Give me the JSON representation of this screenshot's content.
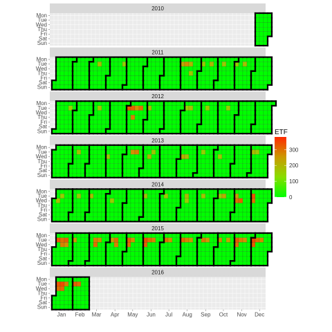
{
  "chart_data": {
    "type": "heatmap",
    "title": "",
    "xlabel": "",
    "ylabel": "",
    "x_tick_labels": [
      "Jan",
      "Feb",
      "Mar",
      "Apr",
      "May",
      "Jun",
      "Jul",
      "Aug",
      "Sep",
      "Oct",
      "Nov",
      "Dec"
    ],
    "y_tick_labels": [
      "Mon",
      "Tue",
      "Wed",
      "Thu",
      "Fri",
      "Sat",
      "Sun"
    ],
    "facets": [
      "2010",
      "2011",
      "2012",
      "2013",
      "2014",
      "2015",
      "2016"
    ],
    "legend": {
      "title": "ETF",
      "ticks": [
        0,
        100,
        200,
        300
      ],
      "range": [
        0,
        380
      ],
      "position": "right",
      "colors": [
        "#00ff00",
        "#88dd00",
        "#cc9900",
        "#ff2a00"
      ]
    },
    "grid": true,
    "data_start": "2010-12-06",
    "data_end": "2016-02-28",
    "elevated_cells": [
      [
        "2011-03-15",
        180
      ],
      [
        "2011-04-26",
        150
      ],
      [
        "2011-08-02",
        220
      ],
      [
        "2011-08-09",
        260
      ],
      [
        "2011-08-16",
        200
      ],
      [
        "2011-08-18",
        170
      ],
      [
        "2011-09-06",
        150
      ],
      [
        "2011-09-20",
        190
      ],
      [
        "2011-10-11",
        160
      ],
      [
        "2011-11-01",
        150
      ],
      [
        "2011-11-15",
        180
      ],
      [
        "2012-01-24",
        150
      ],
      [
        "2012-03-13",
        170
      ],
      [
        "2012-05-01",
        330
      ],
      [
        "2012-05-08",
        320
      ],
      [
        "2012-05-10",
        280
      ],
      [
        "2012-05-15",
        260
      ],
      [
        "2012-05-22",
        300
      ],
      [
        "2012-06-05",
        190
      ],
      [
        "2012-08-07",
        150
      ],
      [
        "2012-08-14",
        180
      ],
      [
        "2012-09-11",
        160
      ],
      [
        "2012-10-16",
        150
      ],
      [
        "2013-02-12",
        180
      ],
      [
        "2013-04-03",
        150
      ],
      [
        "2013-05-14",
        260
      ],
      [
        "2013-05-21",
        280
      ],
      [
        "2013-06-12",
        200
      ],
      [
        "2013-06-18",
        170
      ],
      [
        "2013-08-07",
        220
      ],
      [
        "2013-08-14",
        180
      ],
      [
        "2013-09-10",
        150
      ],
      [
        "2013-10-09",
        160
      ],
      [
        "2013-12-03",
        190
      ],
      [
        "2013-12-10",
        160
      ],
      [
        "2014-01-08",
        170
      ],
      [
        "2014-01-14",
        150
      ],
      [
        "2014-02-11",
        160
      ],
      [
        "2014-03-04",
        180
      ],
      [
        "2014-04-09",
        150
      ],
      [
        "2014-06-03",
        170
      ],
      [
        "2014-07-08",
        160
      ],
      [
        "2014-08-12",
        190
      ],
      [
        "2014-08-13",
        150
      ],
      [
        "2014-09-09",
        170
      ],
      [
        "2014-10-07",
        150
      ],
      [
        "2014-10-14",
        210
      ],
      [
        "2014-11-04",
        240
      ],
      [
        "2014-11-05",
        300
      ],
      [
        "2014-11-12",
        320
      ],
      [
        "2014-12-02",
        330
      ],
      [
        "2014-12-03",
        300
      ],
      [
        "2015-01-06",
        330
      ],
      [
        "2015-01-13",
        300
      ],
      [
        "2015-01-14",
        280
      ],
      [
        "2015-01-20",
        320
      ],
      [
        "2015-01-21",
        260
      ],
      [
        "2015-02-03",
        250
      ],
      [
        "2015-03-10",
        280
      ],
      [
        "2015-03-11",
        300
      ],
      [
        "2015-03-17",
        260
      ],
      [
        "2015-04-07",
        230
      ],
      [
        "2015-04-14",
        300
      ],
      [
        "2015-04-15",
        280
      ],
      [
        "2015-05-05",
        320
      ],
      [
        "2015-05-06",
        300
      ],
      [
        "2015-05-12",
        260
      ],
      [
        "2015-06-02",
        340
      ],
      [
        "2015-06-03",
        310
      ],
      [
        "2015-06-09",
        300
      ],
      [
        "2015-06-16",
        280
      ],
      [
        "2015-07-07",
        300
      ],
      [
        "2015-07-14",
        260
      ],
      [
        "2015-08-04",
        310
      ],
      [
        "2015-08-11",
        280
      ],
      [
        "2015-08-18",
        250
      ],
      [
        "2015-09-08",
        290
      ],
      [
        "2015-09-15",
        250
      ],
      [
        "2015-10-06",
        260
      ],
      [
        "2015-10-20",
        230
      ],
      [
        "2015-11-03",
        330
      ],
      [
        "2015-11-04",
        300
      ],
      [
        "2015-11-10",
        280
      ],
      [
        "2015-11-17",
        260
      ],
      [
        "2015-12-01",
        350
      ],
      [
        "2015-12-02",
        320
      ],
      [
        "2015-12-08",
        300
      ],
      [
        "2015-12-15",
        270
      ],
      [
        "2016-01-05",
        330
      ],
      [
        "2016-01-06",
        300
      ],
      [
        "2016-01-12",
        340
      ],
      [
        "2016-01-13",
        310
      ],
      [
        "2016-01-19",
        280
      ],
      [
        "2016-02-02",
        320
      ],
      [
        "2016-02-09",
        300
      ]
    ]
  }
}
